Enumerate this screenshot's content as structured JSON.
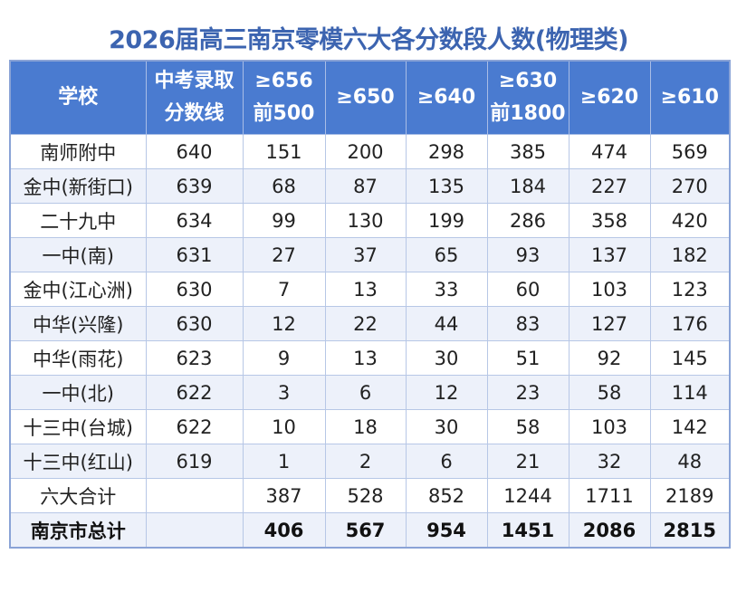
{
  "title": "2026届高三南京零模六大各分数段人数(物理类)",
  "table": {
    "headers": [
      [
        "学校"
      ],
      [
        "中考录取",
        "分数线"
      ],
      [
        "≥656",
        "前500"
      ],
      [
        "≥650"
      ],
      [
        "≥640"
      ],
      [
        "≥630",
        "前1800"
      ],
      [
        "≥620"
      ],
      [
        "≥610"
      ]
    ],
    "rows": [
      [
        "南师附中",
        "640",
        "151",
        "200",
        "298",
        "385",
        "474",
        "569"
      ],
      [
        "金中(新街口)",
        "639",
        "68",
        "87",
        "135",
        "184",
        "227",
        "270"
      ],
      [
        "二十九中",
        "634",
        "99",
        "130",
        "199",
        "286",
        "358",
        "420"
      ],
      [
        "一中(南)",
        "631",
        "27",
        "37",
        "65",
        "93",
        "137",
        "182"
      ],
      [
        "金中(江心洲)",
        "630",
        "7",
        "13",
        "33",
        "60",
        "103",
        "123"
      ],
      [
        "中华(兴隆)",
        "630",
        "12",
        "22",
        "44",
        "83",
        "127",
        "176"
      ],
      [
        "中华(雨花)",
        "623",
        "9",
        "13",
        "30",
        "51",
        "92",
        "145"
      ],
      [
        "一中(北)",
        "622",
        "3",
        "6",
        "12",
        "23",
        "58",
        "114"
      ],
      [
        "十三中(台城)",
        "622",
        "10",
        "18",
        "30",
        "58",
        "103",
        "142"
      ],
      [
        "十三中(红山)",
        "619",
        "1",
        "2",
        "6",
        "21",
        "32",
        "48"
      ],
      [
        "六大合计",
        "",
        "387",
        "528",
        "852",
        "1244",
        "1711",
        "2189"
      ],
      [
        "南京市总计",
        "",
        "406",
        "567",
        "954",
        "1451",
        "2086",
        "2815"
      ]
    ]
  },
  "colors": {
    "header_bg": "#4a7bd0",
    "title": "#3c64b0",
    "alt_row": "#edf1fa"
  }
}
